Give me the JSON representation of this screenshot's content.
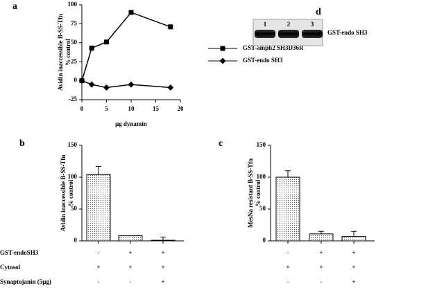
{
  "chart_data": [
    {
      "type": "line",
      "label": "a",
      "ylabel": [
        "Avidin inaccessible B-SS-Tfn",
        "% control"
      ],
      "xlabel": "μg dynamin",
      "x": [
        0,
        2,
        5,
        10,
        18
      ],
      "series": [
        {
          "name": "GST-amph2 SH3D36R",
          "color": "#000000",
          "marker": "square",
          "values": [
            0,
            43,
            51,
            90,
            71
          ]
        },
        {
          "name": "GST-endo SH3",
          "color": "#000000",
          "marker": "diamond",
          "values": [
            0,
            -5,
            -9,
            -5,
            -9
          ]
        }
      ],
      "xlim": [
        0,
        20
      ],
      "xticks": [
        0,
        5,
        10,
        15,
        20
      ],
      "ylim": [
        -25,
        100
      ],
      "yticks": [
        -25,
        0,
        25,
        50,
        75,
        100
      ]
    },
    {
      "type": "bar",
      "label": "b",
      "ylabel": [
        "Avidin inaccessible B-SS-Tfn",
        "% control"
      ],
      "values": [
        104,
        8,
        1
      ],
      "errors": [
        13,
        0,
        5
      ],
      "ylim": [
        0,
        150
      ],
      "yticks": [
        0,
        50,
        100,
        150
      ],
      "condition_labels": [
        "GST-endoSH3",
        "Cytosol",
        "Synaptojanin (5μg)"
      ],
      "conditions": [
        [
          "-",
          "+",
          "+"
        ],
        [
          "+",
          "+",
          "+"
        ],
        [
          "-",
          "-",
          "+"
        ]
      ]
    },
    {
      "type": "bar",
      "label": "c",
      "ylabel": [
        "MesNa resistant B-SS-Tfn",
        "% control"
      ],
      "values": [
        100,
        11,
        7
      ],
      "errors": [
        10,
        4,
        8
      ],
      "ylim": [
        0,
        150
      ],
      "yticks": [
        0,
        50,
        100,
        150
      ],
      "conditions": [
        [
          "-",
          "+",
          "+"
        ],
        [
          "+",
          "+",
          "+"
        ],
        [
          "-",
          "-",
          "+"
        ]
      ]
    },
    {
      "type": "gel",
      "label": "d",
      "lanes": [
        "1",
        "2",
        "3"
      ],
      "band_label": "GST-endo SH3"
    }
  ]
}
